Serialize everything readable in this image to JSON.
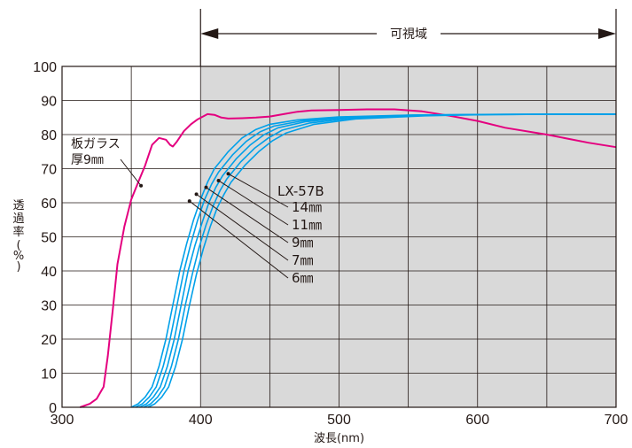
{
  "chart_data": {
    "type": "line",
    "xlabel": "波長(nm)",
    "ylabel": "透過率(%)",
    "xlim": [
      300,
      700
    ],
    "ylim": [
      0,
      100
    ],
    "xticks": [
      "300",
      "400",
      "500",
      "600",
      "700"
    ],
    "yticks": [
      "0",
      "10",
      "20",
      "30",
      "40",
      "50",
      "60",
      "70",
      "80",
      "90",
      "100"
    ],
    "grid": true,
    "visible_range": {
      "label": "可視域",
      "from": 400,
      "to": 700
    },
    "colors": {
      "glass": "#e4007f",
      "lx": "#00a0e9",
      "shade": "#d9d9d9",
      "ink": "#231815"
    },
    "series": [
      {
        "name": "板ガラス 厚9㎜",
        "label_lines": [
          "板ガラス",
          "厚9㎜"
        ],
        "color": "#e4007f",
        "points": [
          [
            313,
            0
          ],
          [
            320,
            1
          ],
          [
            325,
            2.5
          ],
          [
            330,
            6
          ],
          [
            333,
            15
          ],
          [
            337,
            30
          ],
          [
            340,
            42
          ],
          [
            345,
            53
          ],
          [
            350,
            61
          ],
          [
            355,
            66
          ],
          [
            360,
            71
          ],
          [
            365,
            77
          ],
          [
            370,
            79
          ],
          [
            375,
            78.5
          ],
          [
            378,
            77
          ],
          [
            380,
            76.5
          ],
          [
            383,
            78
          ],
          [
            388,
            81
          ],
          [
            393,
            83
          ],
          [
            398,
            84.5
          ],
          [
            405,
            86
          ],
          [
            410,
            85.8
          ],
          [
            415,
            85
          ],
          [
            420,
            84.7
          ],
          [
            430,
            84.8
          ],
          [
            440,
            85
          ],
          [
            450,
            85.3
          ],
          [
            460,
            86
          ],
          [
            470,
            86.7
          ],
          [
            480,
            87.1
          ],
          [
            500,
            87.2
          ],
          [
            520,
            87.4
          ],
          [
            540,
            87.4
          ],
          [
            560,
            86.8
          ],
          [
            580,
            85.5
          ],
          [
            600,
            84
          ],
          [
            620,
            82
          ],
          [
            650,
            80
          ],
          [
            680,
            77.6
          ],
          [
            700,
            76.3
          ]
        ]
      },
      {
        "name": "6㎜",
        "color": "#00a0e9",
        "points": [
          [
            350,
            0
          ],
          [
            355,
            1
          ],
          [
            360,
            3
          ],
          [
            365,
            6
          ],
          [
            370,
            12
          ],
          [
            375,
            20
          ],
          [
            380,
            30
          ],
          [
            385,
            40
          ],
          [
            390,
            48
          ],
          [
            395,
            55
          ],
          [
            400,
            61
          ],
          [
            405,
            66
          ],
          [
            410,
            70
          ],
          [
            420,
            75
          ],
          [
            430,
            79
          ],
          [
            440,
            81.5
          ],
          [
            450,
            83
          ],
          [
            470,
            84.3
          ],
          [
            500,
            85.2
          ],
          [
            550,
            85.7
          ],
          [
            600,
            85.9
          ],
          [
            700,
            86
          ]
        ]
      },
      {
        "name": "7㎜",
        "color": "#00a0e9",
        "points": [
          [
            353,
            0
          ],
          [
            358,
            1
          ],
          [
            363,
            3
          ],
          [
            368,
            6
          ],
          [
            373,
            12
          ],
          [
            378,
            20
          ],
          [
            383,
            30
          ],
          [
            388,
            40
          ],
          [
            393,
            48
          ],
          [
            398,
            55
          ],
          [
            403,
            61
          ],
          [
            408,
            65.5
          ],
          [
            413,
            69
          ],
          [
            423,
            74
          ],
          [
            433,
            78
          ],
          [
            443,
            80.8
          ],
          [
            453,
            82.5
          ],
          [
            473,
            84
          ],
          [
            503,
            85.1
          ],
          [
            553,
            85.7
          ],
          [
            603,
            85.9
          ],
          [
            700,
            86
          ]
        ]
      },
      {
        "name": "9㎜",
        "color": "#00a0e9",
        "points": [
          [
            356,
            0
          ],
          [
            361,
            1
          ],
          [
            366,
            3
          ],
          [
            371,
            6
          ],
          [
            376,
            12
          ],
          [
            381,
            20
          ],
          [
            386,
            30
          ],
          [
            391,
            40
          ],
          [
            396,
            47.5
          ],
          [
            401,
            54
          ],
          [
            406,
            60
          ],
          [
            411,
            64.5
          ],
          [
            416,
            68
          ],
          [
            426,
            73
          ],
          [
            436,
            77
          ],
          [
            446,
            80
          ],
          [
            456,
            82
          ],
          [
            476,
            83.8
          ],
          [
            506,
            85
          ],
          [
            556,
            85.7
          ],
          [
            606,
            85.9
          ],
          [
            700,
            86
          ]
        ]
      },
      {
        "name": "11㎜",
        "color": "#00a0e9",
        "points": [
          [
            359,
            0
          ],
          [
            364,
            1
          ],
          [
            369,
            3
          ],
          [
            374,
            6
          ],
          [
            379,
            12
          ],
          [
            384,
            20
          ],
          [
            389,
            30
          ],
          [
            394,
            39
          ],
          [
            399,
            47
          ],
          [
            404,
            53.5
          ],
          [
            409,
            59
          ],
          [
            414,
            63.5
          ],
          [
            419,
            67
          ],
          [
            429,
            72
          ],
          [
            439,
            76
          ],
          [
            449,
            79
          ],
          [
            459,
            81.3
          ],
          [
            479,
            83.4
          ],
          [
            509,
            84.8
          ],
          [
            559,
            85.6
          ],
          [
            609,
            85.9
          ],
          [
            700,
            86
          ]
        ]
      },
      {
        "name": "14㎜",
        "color": "#00a0e9",
        "points": [
          [
            362,
            0
          ],
          [
            367,
            1
          ],
          [
            372,
            3
          ],
          [
            377,
            6
          ],
          [
            382,
            12
          ],
          [
            387,
            20
          ],
          [
            392,
            30
          ],
          [
            397,
            39
          ],
          [
            402,
            46.5
          ],
          [
            407,
            53
          ],
          [
            412,
            58.5
          ],
          [
            417,
            62.5
          ],
          [
            422,
            66
          ],
          [
            432,
            71
          ],
          [
            442,
            75
          ],
          [
            452,
            78.2
          ],
          [
            462,
            80.5
          ],
          [
            482,
            83
          ],
          [
            512,
            84.6
          ],
          [
            562,
            85.5
          ],
          [
            612,
            85.9
          ],
          [
            700,
            86
          ]
        ]
      }
    ],
    "annotations": {
      "glass": {
        "text_lines": [
          "板ガラス",
          "厚9㎜"
        ],
        "point": [
          357,
          65
        ]
      },
      "group_label": "LX-57B",
      "lx_callouts": [
        {
          "label": "14㎜",
          "point": [
            420,
            68.5
          ]
        },
        {
          "label": "11㎜",
          "point": [
            413,
            66.5
          ]
        },
        {
          "label": "9㎜",
          "point": [
            404,
            64.5
          ]
        },
        {
          "label": "7㎜",
          "point": [
            397,
            62.5
          ]
        },
        {
          "label": "6㎜",
          "point": [
            392,
            60.5
          ]
        }
      ]
    }
  }
}
